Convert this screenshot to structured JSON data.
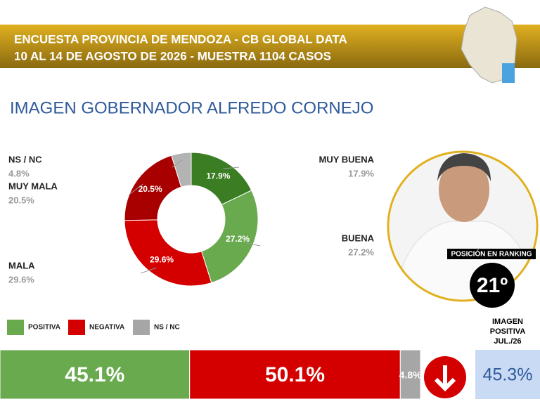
{
  "header": {
    "lines": [
      "ENCUESTA PROVINCIA DE MENDOZA - CB GLOBAL DATA",
      "10 AL 14 DE AGOSTO DE 2026 - MUESTRA 1104 CASOS"
    ]
  },
  "title": "IMAGEN GOBERNADOR  ALFREDO CORNEJO",
  "chart_data": [
    {
      "type": "donut",
      "categories": [
        "MUY BUENA",
        "BUENA",
        "MALA",
        "MUY MALA",
        "NS / NC"
      ],
      "values": [
        17.9,
        27.2,
        29.6,
        20.5,
        4.8
      ],
      "value_labels": [
        "17.9%",
        "27.2%",
        "29.6%",
        "20.5%",
        "4.8%"
      ],
      "colors": [
        "#3a7d22",
        "#6aaa4f",
        "#d40000",
        "#a80000",
        "#b3b3b3"
      ]
    },
    {
      "type": "stacked_bar",
      "xlim": [
        0,
        100
      ],
      "series": [
        {
          "name": "POSITIVA",
          "color": "#6aaa4f",
          "values": [
            45.1
          ],
          "value_labels": [
            "45.1%"
          ]
        },
        {
          "name": "NEGATIVA",
          "color": "#d40000",
          "values": [
            50.1
          ],
          "value_labels": [
            "50.1%"
          ]
        },
        {
          "name": "NS / NC",
          "color": "#a6a6a6",
          "values": [
            4.8
          ],
          "value_labels": [
            "4.8%"
          ]
        }
      ]
    }
  ],
  "ranking": {
    "label": "POSICIÓN EN RANKING",
    "position": "21º"
  },
  "comparison": {
    "title": [
      "IMAGEN",
      "POSITIVA",
      "JUL./26"
    ],
    "value": "45.3%"
  }
}
